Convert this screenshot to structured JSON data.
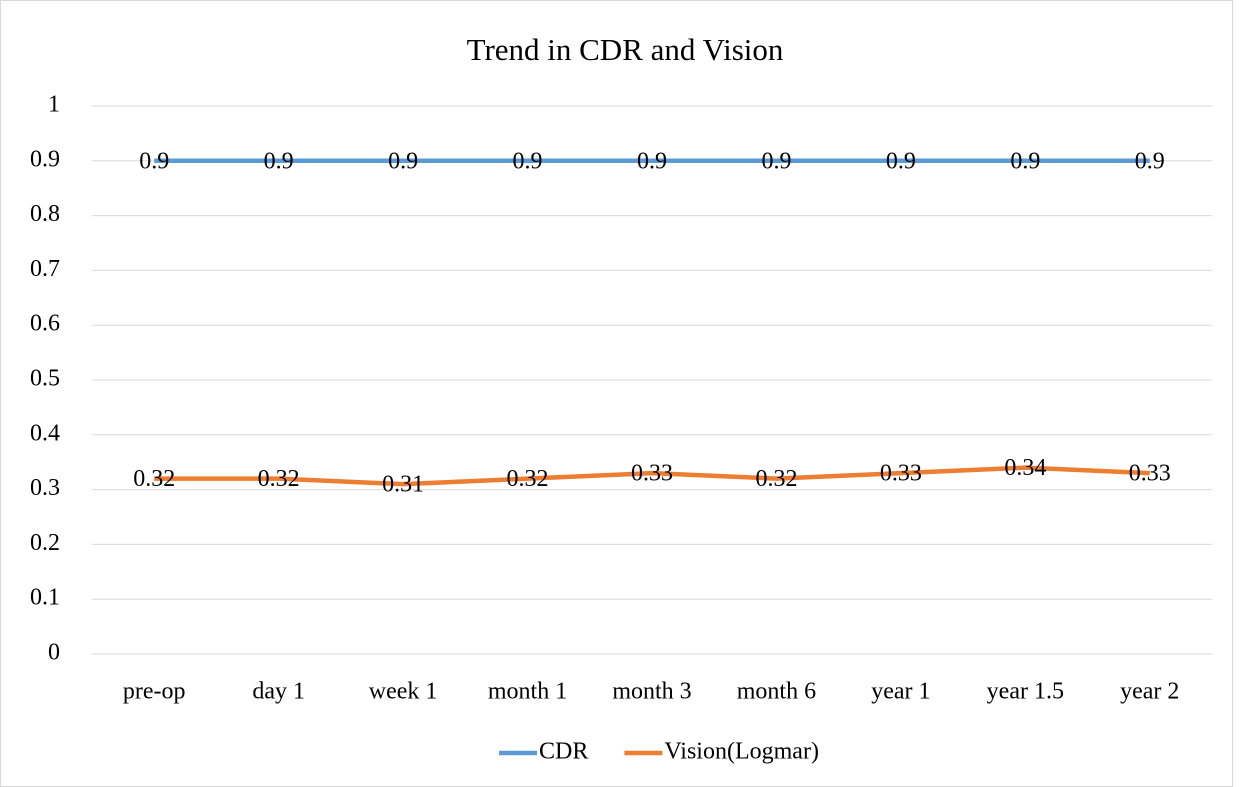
{
  "chart_data": {
    "type": "line",
    "title": "Trend in CDR and Vision",
    "categories": [
      "pre-op",
      "day 1",
      "week 1",
      "month 1",
      "month 3",
      "month 6",
      "year 1",
      "year 1.5",
      "year 2"
    ],
    "series": [
      {
        "name": "CDR",
        "color": "#5b9bd5",
        "values": [
          0.9,
          0.9,
          0.9,
          0.9,
          0.9,
          0.9,
          0.9,
          0.9,
          0.9
        ]
      },
      {
        "name": "Vision(Logmar)",
        "color": "#ed7d31",
        "values": [
          0.32,
          0.32,
          0.31,
          0.32,
          0.33,
          0.32,
          0.33,
          0.34,
          0.33
        ]
      }
    ],
    "ylim": [
      0,
      1
    ],
    "yticks": [
      0,
      0.1,
      0.2,
      0.3,
      0.4,
      0.5,
      0.6,
      0.7,
      0.8,
      0.9,
      1
    ],
    "grid": true,
    "legend": "bottom",
    "data_labels": true
  }
}
